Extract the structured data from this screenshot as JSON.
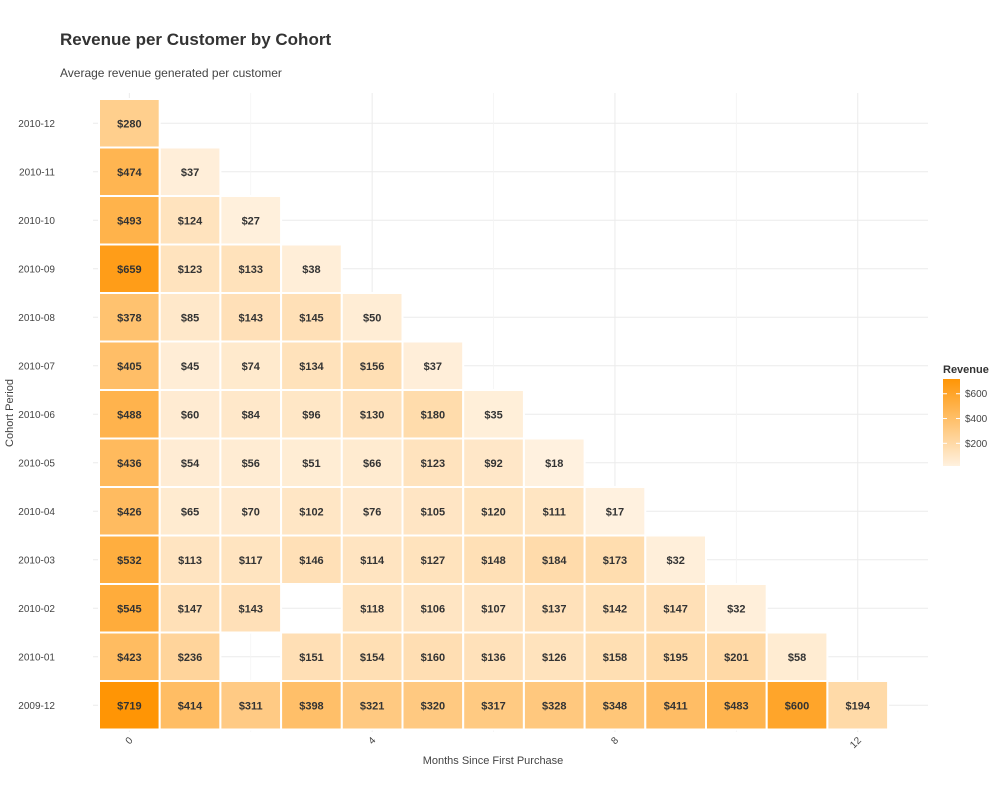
{
  "title": "Revenue per Customer by Cohort",
  "subtitle": "Average revenue generated per customer",
  "colors": {
    "low": "#FFF1DF",
    "high": "#FF9505",
    "grid": "#EBEBEB"
  },
  "chart_data": {
    "type": "heatmap",
    "xlabel": "Months Since First Purchase",
    "ylabel": "Cohort Period",
    "x_ticks": [
      "0",
      "4",
      "8",
      "12"
    ],
    "x_range": [
      0,
      12
    ],
    "legend": {
      "title": "Revenue",
      "ticks": [
        "$600",
        "$400",
        "$200"
      ],
      "tick_values": [
        600,
        400,
        200
      ],
      "range": [
        17,
        719
      ],
      "position": "right"
    },
    "grid": true,
    "rows": [
      {
        "cohort": "2010-12",
        "values": [
          280
        ]
      },
      {
        "cohort": "2010-11",
        "values": [
          474,
          37
        ]
      },
      {
        "cohort": "2010-10",
        "values": [
          493,
          124,
          27
        ]
      },
      {
        "cohort": "2010-09",
        "values": [
          659,
          123,
          133,
          38
        ]
      },
      {
        "cohort": "2010-08",
        "values": [
          378,
          85,
          143,
          145,
          50
        ]
      },
      {
        "cohort": "2010-07",
        "values": [
          405,
          45,
          74,
          134,
          156,
          37
        ]
      },
      {
        "cohort": "2010-06",
        "values": [
          488,
          60,
          84,
          96,
          130,
          180,
          35
        ]
      },
      {
        "cohort": "2010-05",
        "values": [
          436,
          54,
          56,
          51,
          66,
          123,
          92,
          18
        ]
      },
      {
        "cohort": "2010-04",
        "values": [
          426,
          65,
          70,
          102,
          76,
          105,
          120,
          111,
          17
        ]
      },
      {
        "cohort": "2010-03",
        "values": [
          532,
          113,
          117,
          146,
          114,
          127,
          148,
          184,
          173,
          32
        ]
      },
      {
        "cohort": "2010-02",
        "values": [
          545,
          147,
          143,
          null,
          118,
          106,
          107,
          137,
          142,
          147,
          32
        ]
      },
      {
        "cohort": "2010-01",
        "values": [
          423,
          236,
          null,
          151,
          154,
          160,
          136,
          126,
          158,
          195,
          201,
          58
        ]
      },
      {
        "cohort": "2009-12",
        "values": [
          719,
          414,
          311,
          398,
          321,
          320,
          317,
          328,
          348,
          411,
          483,
          600,
          194
        ]
      }
    ],
    "value_prefix": "$"
  }
}
